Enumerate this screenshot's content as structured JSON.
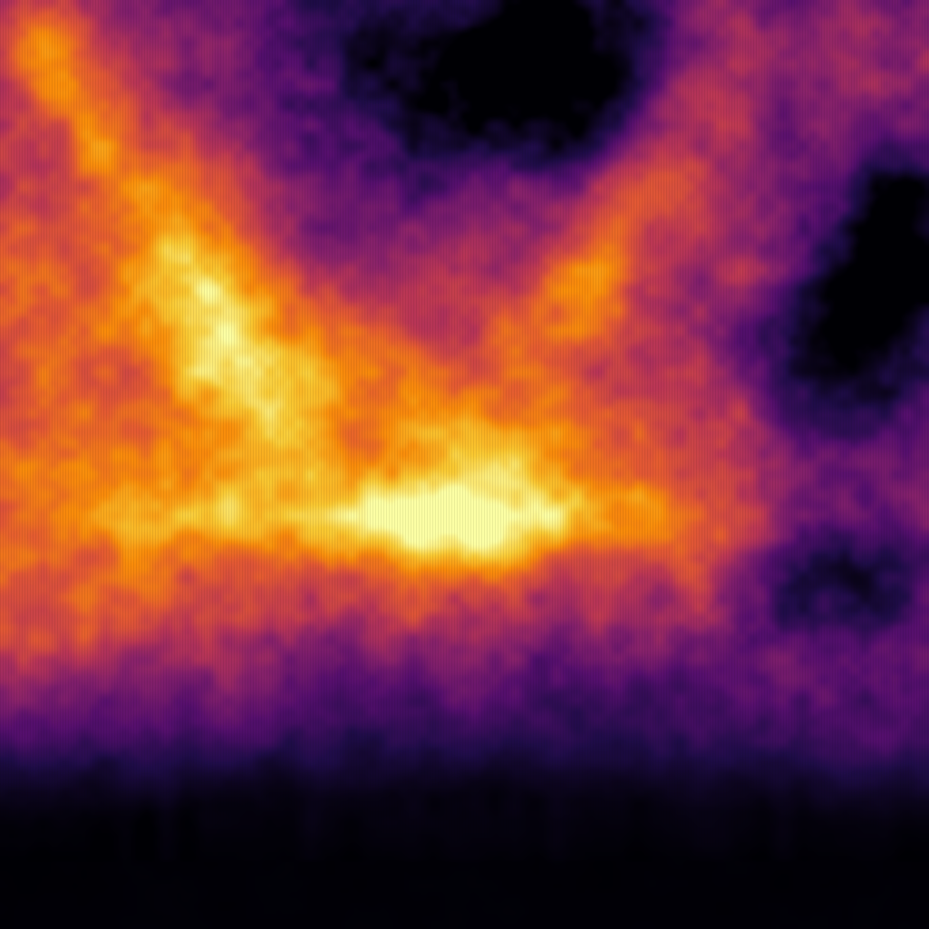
{
  "image": {
    "colormap": "inferno",
    "colors": {
      "darkest": "#000004",
      "deep_purple": "#320a5e",
      "purple": "#781c6d",
      "red_magenta": "#bc3754",
      "orange": "#ed6925",
      "yellow": "#fbb61a",
      "pale_yellow": "#fcffa4"
    }
  }
}
